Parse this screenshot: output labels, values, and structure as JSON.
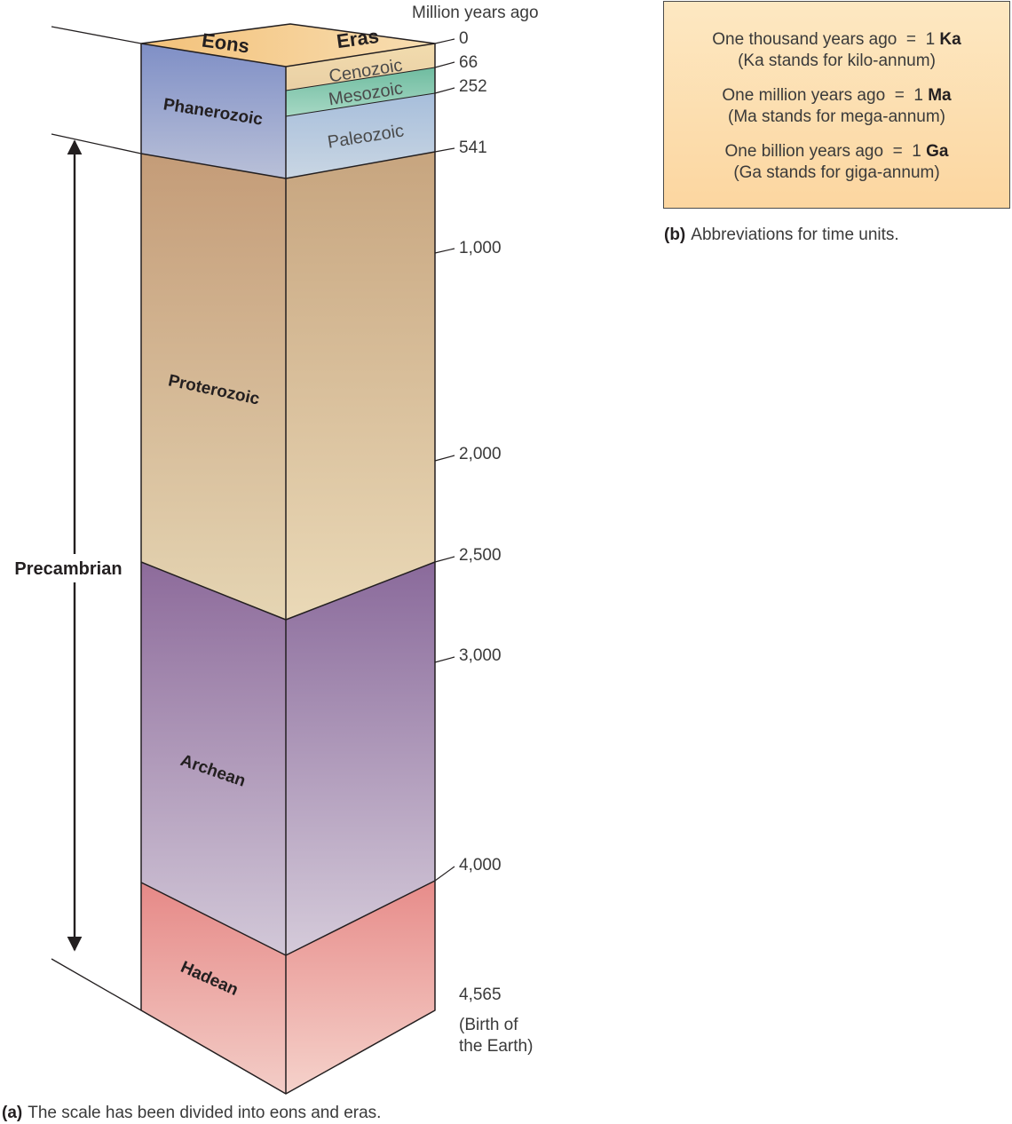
{
  "header": {
    "axis_title": "Million years ago",
    "eons_label": "Eons",
    "eras_label": "Eras"
  },
  "ticks": [
    {
      "label": "0",
      "value": 0
    },
    {
      "label": "66",
      "value": 66
    },
    {
      "label": "252",
      "value": 252
    },
    {
      "label": "541",
      "value": 541
    },
    {
      "label": "1,000",
      "value": 1000
    },
    {
      "label": "2,000",
      "value": 2000
    },
    {
      "label": "2,500",
      "value": 2500
    },
    {
      "label": "3,000",
      "value": 3000
    },
    {
      "label": "4,000",
      "value": 4000
    },
    {
      "label": "4,565",
      "value": 4565
    }
  ],
  "birth_note": [
    "(Birth of",
    "the Earth)"
  ],
  "eons": [
    {
      "name": "Phanerozoic",
      "start_ma": 541,
      "end_ma": 0,
      "color_top": "#7e8fc4",
      "color_bottom": "#c2c8d8"
    },
    {
      "name": "Proterozoic",
      "start_ma": 2500,
      "end_ma": 541,
      "color_top": "#c09a78",
      "color_bottom": "#e6d6b4"
    },
    {
      "name": "Archean",
      "start_ma": 4000,
      "end_ma": 2500,
      "color_top": "#8c6a9a",
      "color_bottom": "#cfc4d6"
    },
    {
      "name": "Hadean",
      "start_ma": 4565,
      "end_ma": 4000,
      "color_top": "#e58a88",
      "color_bottom": "#f3cbc5"
    }
  ],
  "eras": [
    {
      "name": "Cenozoic",
      "start_ma": 66,
      "end_ma": 0,
      "color": "#efd7a8"
    },
    {
      "name": "Mesozoic",
      "start_ma": 252,
      "end_ma": 66,
      "color": "#79c2a6"
    },
    {
      "name": "Paleozoic",
      "start_ma": 541,
      "end_ma": 252,
      "color": "#b3c7dc"
    }
  ],
  "precambrian": {
    "label": "Precambrian"
  },
  "caption_a": {
    "letter": "(a)",
    "text": "The scale has been divided into eons and eras."
  },
  "abbreviations": {
    "items": [
      {
        "line1": "One thousand years ago",
        "eq": "  =  1 ",
        "unit": "Ka",
        "line2": "(Ka stands for kilo-annum)"
      },
      {
        "line1": "One million years ago",
        "eq": "  =  1 ",
        "unit": "Ma",
        "line2": "(Ma stands for mega-annum)"
      },
      {
        "line1": "One billion years ago",
        "eq": "  =  1 ",
        "unit": "Ga",
        "line2": "(Ga stands for giga-annum)"
      }
    ]
  },
  "caption_b": {
    "letter": "(b)",
    "text": "Abbreviations for time units."
  }
}
